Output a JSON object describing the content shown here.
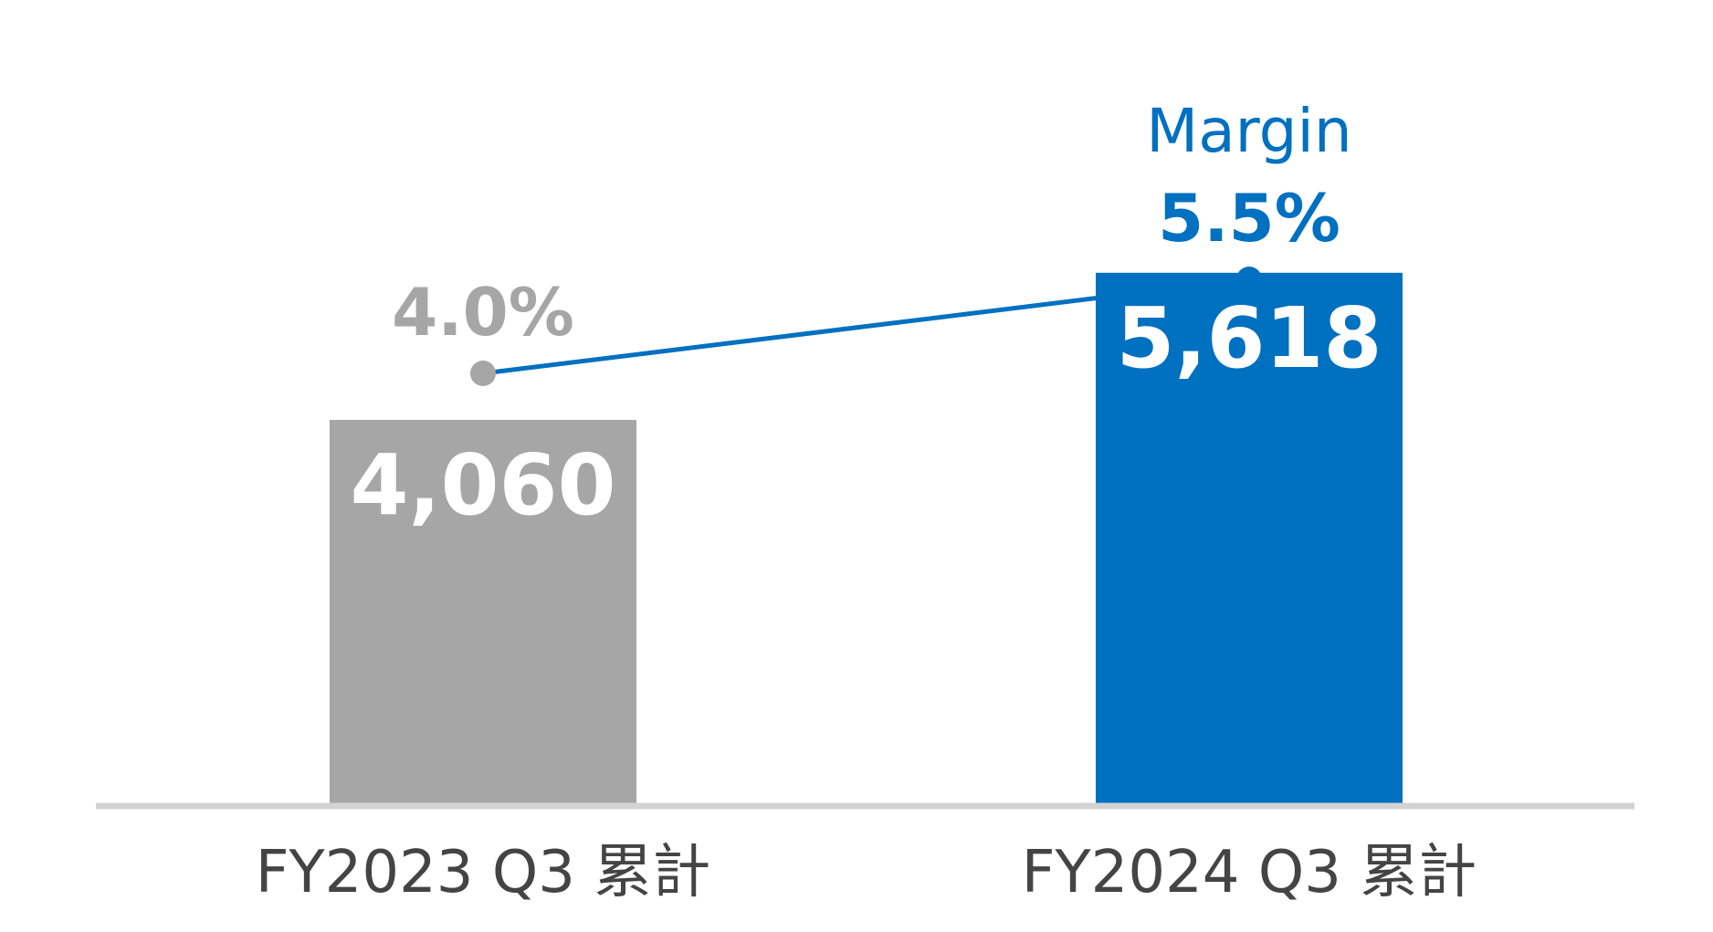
{
  "chart_data": {
    "type": "bar",
    "categories": [
      "FY2023 Q3 累計",
      "FY2024 Q3 累計"
    ],
    "values": [
      4060,
      5618
    ],
    "value_labels": [
      "4,060",
      "5,618"
    ],
    "ylim": [
      0,
      7000
    ],
    "bar_colors": [
      "#a6a6a6",
      "#0070c0"
    ],
    "line_series": {
      "name": "Margin",
      "values": [
        4.0,
        5.5
      ],
      "labels": [
        "4.0%",
        "5.5%"
      ],
      "colors": [
        "#a6a6a6",
        "#0070c0"
      ],
      "line_color": "#0070c0",
      "ylim": [
        0,
        7
      ]
    },
    "axis_color": "#d3d3d3",
    "grid": false,
    "legend": "none"
  }
}
